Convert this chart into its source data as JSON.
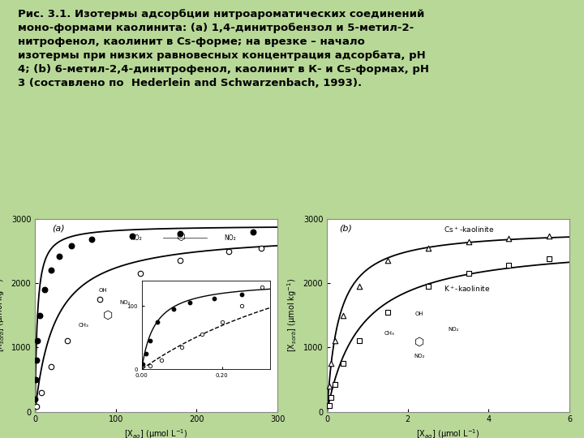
{
  "title_text": "Рис. 3.1. Изотермы адсорбции нитроароматических соединений\nмоно-формами каолинита: (а) 1,4-динитробензол и 5-метил-2-\nнитрофенол, каолинит в Cs-форме; на врезке – начало\nизотермы при низких равновесных концентрация адсорбата, рН\n4; (b) 6-метил-2,4-динитрофенол, каолинит в К- и Cs-формах, рН\n3 (составлено по  Hederlein and Schwarzenbach, 1993).",
  "bg_color": "#b8d898",
  "panel_a": {
    "label": "(a)",
    "xlabel": "[X$_{aq}$] (μmol L$^{-1}$)",
    "ylabel": "[X$_{sorb}$] (μmol kg$^{-1}$)",
    "xlim": [
      0,
      300
    ],
    "ylim": [
      0,
      3000
    ],
    "xticks": [
      0,
      100,
      200,
      300
    ],
    "yticks": [
      0,
      1000,
      2000,
      3000
    ],
    "s1_x": [
      0.3,
      0.8,
      1.5,
      3,
      6,
      12,
      20,
      30,
      45,
      70,
      120,
      180,
      270
    ],
    "s1_y": [
      200,
      500,
      800,
      1100,
      1500,
      1900,
      2200,
      2420,
      2580,
      2680,
      2740,
      2770,
      2800
    ],
    "s2_x": [
      2,
      8,
      20,
      40,
      80,
      130,
      180,
      240,
      280
    ],
    "s2_y": [
      80,
      300,
      700,
      1100,
      1750,
      2150,
      2350,
      2500,
      2550
    ],
    "inset_s1_x": [
      0.003,
      0.01,
      0.02,
      0.04,
      0.08,
      0.12,
      0.18,
      0.25
    ],
    "inset_s1_y": [
      8,
      25,
      45,
      75,
      95,
      105,
      112,
      118
    ],
    "inset_s2_x": [
      0.02,
      0.05,
      0.1,
      0.15,
      0.2,
      0.25,
      0.3
    ],
    "inset_s2_y": [
      5,
      15,
      35,
      55,
      75,
      100,
      130
    ],
    "qmax1": 2900,
    "K1": 0.35,
    "qmax2": 2800,
    "K2": 0.04
  },
  "panel_b": {
    "label": "(b)",
    "xlabel": "[X$_{aq}$] (μmol L$^{-1}$)",
    "ylabel": "[X$_{sorb}$] (μmol kg$^{-1}$)",
    "xlim": [
      0,
      6
    ],
    "ylim": [
      0,
      3000
    ],
    "xticks": [
      0,
      2,
      4,
      6
    ],
    "yticks": [
      0,
      1000,
      2000,
      3000
    ],
    "legend1": "Cs$^+$-kaolinite",
    "legend2": "K$^+$-kaolinite",
    "s1_x": [
      0.05,
      0.1,
      0.2,
      0.4,
      0.8,
      1.5,
      2.5,
      3.5,
      4.5,
      5.5
    ],
    "s1_y": [
      400,
      750,
      1100,
      1500,
      1950,
      2350,
      2550,
      2650,
      2700,
      2730
    ],
    "s2_x": [
      0.05,
      0.1,
      0.2,
      0.4,
      0.8,
      1.5,
      2.5,
      3.5,
      4.5,
      5.5
    ],
    "s2_y": [
      100,
      220,
      420,
      750,
      1100,
      1550,
      1950,
      2150,
      2280,
      2380
    ],
    "qmax1": 2850,
    "K1": 3.5,
    "qmax2": 2650,
    "K2": 1.2
  }
}
